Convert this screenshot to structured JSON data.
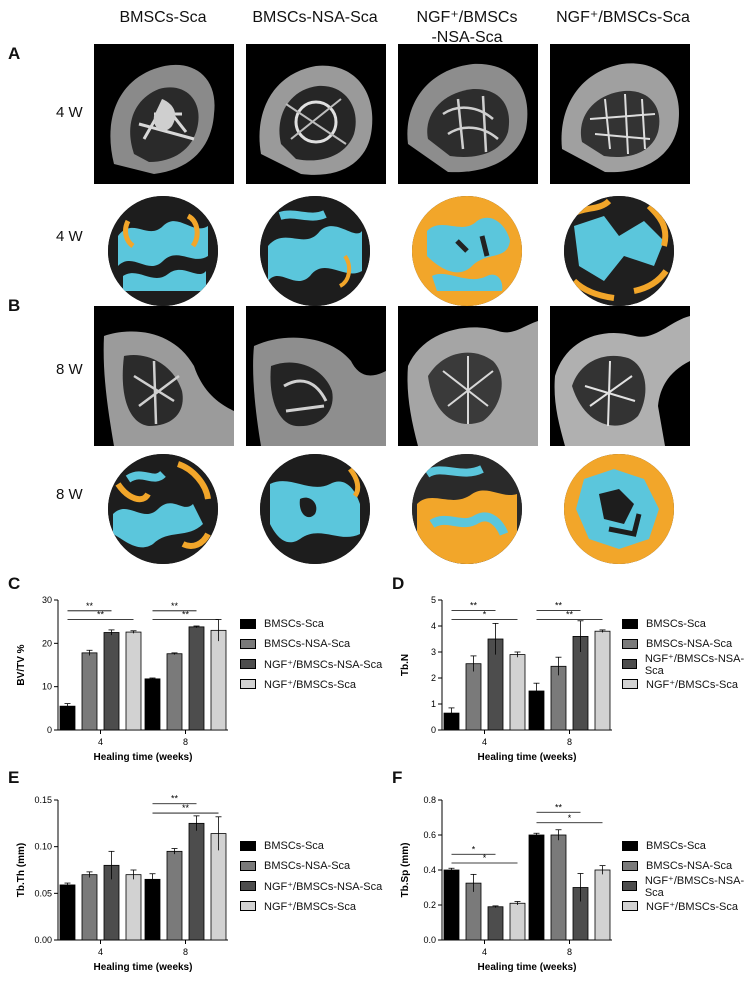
{
  "headers": [
    "BMSCs-Sca",
    "BMSCs-NSA-Sca",
    "NGF⁺/BMSCs\n-NSA-Sca",
    "NGF⁺/BMSCs-Sca"
  ],
  "panels": [
    "A",
    "B",
    "C",
    "D",
    "E",
    "F"
  ],
  "row_labels": [
    "4 W",
    "4 W",
    "8 W",
    "8 W"
  ],
  "colors": {
    "cyan": "#5bc6dc",
    "orange": "#f2a62a",
    "bar1": "#000000",
    "bar2": "#7a7a7a",
    "bar3": "#4d4d4d",
    "bar4": "#d2d2d2"
  },
  "legend": [
    "BMSCs-Sca",
    "BMSCs-NSA-Sca",
    "NGF⁺/BMSCs-NSA-Sca",
    "NGF⁺/BMSCs-Sca"
  ],
  "chart_data": [
    {
      "type": "bar",
      "categories": [
        "4",
        "8"
      ],
      "xlabel": "Healing time (weeks)",
      "ylabel": "BV/TV %",
      "ylim": [
        0,
        30
      ],
      "yticks": [
        "0",
        "10",
        "20",
        "30"
      ],
      "series": [
        {
          "name": "BMSCs-Sca",
          "values": [
            5.5,
            11.8
          ],
          "errors": [
            0.6,
            0.2
          ]
        },
        {
          "name": "BMSCs-NSA-Sca",
          "values": [
            17.8,
            17.6
          ],
          "errors": [
            0.6,
            0.2
          ]
        },
        {
          "name": "NGF⁺/BMSCs-NSA-Sca",
          "values": [
            22.5,
            23.8
          ],
          "errors": [
            0.6,
            0.2
          ]
        },
        {
          "name": "NGF⁺/BMSCs-Sca",
          "values": [
            22.6,
            23.0
          ],
          "errors": [
            0.3,
            2.5
          ]
        }
      ],
      "significance": [
        {
          "group": 0,
          "from": 0,
          "to": 2,
          "label": "**",
          "y": 27.5
        },
        {
          "group": 0,
          "from": 0,
          "to": 3,
          "label": "**",
          "y": 25.5
        },
        {
          "group": 1,
          "from": 0,
          "to": 2,
          "label": "**",
          "y": 27.5
        },
        {
          "group": 1,
          "from": 0,
          "to": 3,
          "label": "**",
          "y": 25.5
        }
      ]
    },
    {
      "type": "bar",
      "categories": [
        "4",
        "8"
      ],
      "xlabel": "Healing time (weeks)",
      "ylabel": "Tb.N",
      "ylim": [
        0,
        5
      ],
      "yticks": [
        "0",
        "1",
        "2",
        "3",
        "4",
        "5"
      ],
      "series": [
        {
          "name": "BMSCs-Sca",
          "values": [
            0.65,
            1.5
          ],
          "errors": [
            0.2,
            0.3
          ]
        },
        {
          "name": "BMSCs-NSA-Sca",
          "values": [
            2.55,
            2.45
          ],
          "errors": [
            0.3,
            0.35
          ]
        },
        {
          "name": "NGF⁺/BMSCs-NSA-Sca",
          "values": [
            3.5,
            3.6
          ],
          "errors": [
            0.6,
            0.6
          ]
        },
        {
          "name": "NGF⁺/BMSCs-Sca",
          "values": [
            2.9,
            3.8
          ],
          "errors": [
            0.1,
            0.05
          ]
        }
      ],
      "significance": [
        {
          "group": 0,
          "from": 0,
          "to": 2,
          "label": "**",
          "y": 4.6
        },
        {
          "group": 0,
          "from": 0,
          "to": 3,
          "label": "*",
          "y": 4.25
        },
        {
          "group": 1,
          "from": 0,
          "to": 2,
          "label": "**",
          "y": 4.6
        },
        {
          "group": 1,
          "from": 0,
          "to": 3,
          "label": "**",
          "y": 4.25
        }
      ]
    },
    {
      "type": "bar",
      "categories": [
        "4",
        "8"
      ],
      "xlabel": "Healing time (weeks)",
      "ylabel": "Tb.Th (mm)",
      "ylim": [
        0,
        0.15
      ],
      "yticks": [
        "0.00",
        "0.05",
        "0.10",
        "0.15"
      ],
      "series": [
        {
          "name": "BMSCs-Sca",
          "values": [
            0.059,
            0.065
          ],
          "errors": [
            0.002,
            0.006
          ]
        },
        {
          "name": "BMSCs-NSA-Sca",
          "values": [
            0.07,
            0.095
          ],
          "errors": [
            0.003,
            0.003
          ]
        },
        {
          "name": "NGF⁺/BMSCs-NSA-Sca",
          "values": [
            0.08,
            0.125
          ],
          "errors": [
            0.015,
            0.008
          ]
        },
        {
          "name": "NGF⁺/BMSCs-Sca",
          "values": [
            0.07,
            0.114
          ],
          "errors": [
            0.005,
            0.018
          ]
        }
      ],
      "significance": [
        {
          "group": 1,
          "from": 0,
          "to": 2,
          "label": "**",
          "y": 0.146
        },
        {
          "group": 1,
          "from": 0,
          "to": 3,
          "label": "**",
          "y": 0.136
        }
      ]
    },
    {
      "type": "bar",
      "categories": [
        "4",
        "8"
      ],
      "xlabel": "Healing time (weeks)",
      "ylabel": "Tb.Sp (mm)",
      "ylim": [
        0,
        0.8
      ],
      "yticks": [
        "0.0",
        "0.2",
        "0.4",
        "0.6",
        "0.8"
      ],
      "series": [
        {
          "name": "BMSCs-Sca",
          "values": [
            0.4,
            0.6
          ],
          "errors": [
            0.01,
            0.01
          ]
        },
        {
          "name": "BMSCs-NSA-Sca",
          "values": [
            0.325,
            0.6
          ],
          "errors": [
            0.05,
            0.03
          ]
        },
        {
          "name": "NGF⁺/BMSCs-NSA-Sca",
          "values": [
            0.19,
            0.3
          ],
          "errors": [
            0.005,
            0.08
          ]
        },
        {
          "name": "NGF⁺/BMSCs-Sca",
          "values": [
            0.21,
            0.4
          ],
          "errors": [
            0.01,
            0.025
          ]
        }
      ],
      "significance": [
        {
          "group": 0,
          "from": 0,
          "to": 2,
          "label": "*",
          "y": 0.49
        },
        {
          "group": 0,
          "from": 0,
          "to": 3,
          "label": "*",
          "y": 0.44
        },
        {
          "group": 1,
          "from": 0,
          "to": 2,
          "label": "**",
          "y": 0.73
        },
        {
          "group": 1,
          "from": 0,
          "to": 3,
          "label": "*",
          "y": 0.67
        }
      ]
    }
  ]
}
